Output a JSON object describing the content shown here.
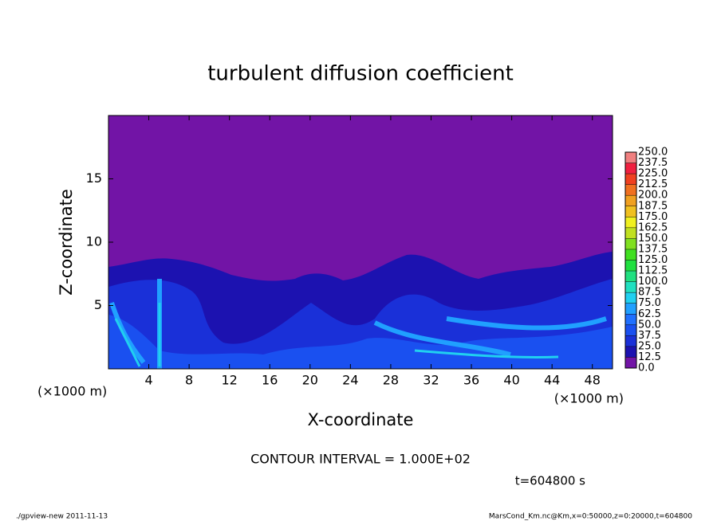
{
  "chart_data": {
    "type": "contour",
    "title": "turbulent diffusion coefficient",
    "xlabel": "X-coordinate",
    "ylabel": "Z-coordinate",
    "xunit": "(×1000 m)",
    "yunit": "(×1000 m)",
    "xlim": [
      0,
      50
    ],
    "ylim": [
      0,
      20
    ],
    "xticks": [
      4,
      8,
      12,
      16,
      20,
      24,
      28,
      32,
      36,
      40,
      44,
      48
    ],
    "yticks": [
      5,
      10,
      15
    ],
    "colorbar": {
      "levels": [
        {
          "value": 0,
          "label": "0.0"
        },
        12.5,
        {
          "value": 25,
          "label": "25.0"
        },
        37.5,
        {
          "value": 50,
          "label": "50.0"
        },
        62.5,
        {
          "value": 75,
          "label": "75.0"
        },
        87.5,
        {
          "value": 100,
          "label": "100.0"
        },
        112.5,
        {
          "value": 125,
          "label": "125.0"
        },
        137.5,
        {
          "value": 150,
          "label": "150.0"
        },
        162.5,
        {
          "value": 175,
          "label": "175.0"
        },
        187.5,
        {
          "value": 200,
          "label": "200.0"
        },
        212.5,
        {
          "value": 225,
          "label": "225.0"
        },
        237.5,
        {
          "value": 250,
          "label": "250.0"
        }
      ],
      "colors": [
        "#7214a6",
        "#1c12b0",
        "#1a30d8",
        "#1a50f0",
        "#2070ff",
        "#20a0ff",
        "#20d0f0",
        "#20e0c0",
        "#20e080",
        "#20e040",
        "#40e020",
        "#80e020",
        "#c0e020",
        "#f0f020",
        "#f0c020",
        "#f0a020",
        "#f07020",
        "#f04020",
        "#f02040",
        "#f08080"
      ]
    },
    "contour_interval": "CONTOUR INTERVAL = 1.000E+02",
    "time_label": "t=604800 s",
    "footer_left": "./gpview-new  2011-11-13",
    "footer_right": "MarsCond_Km.nc@Km,x=0:50000,z=0:20000,t=604800"
  }
}
